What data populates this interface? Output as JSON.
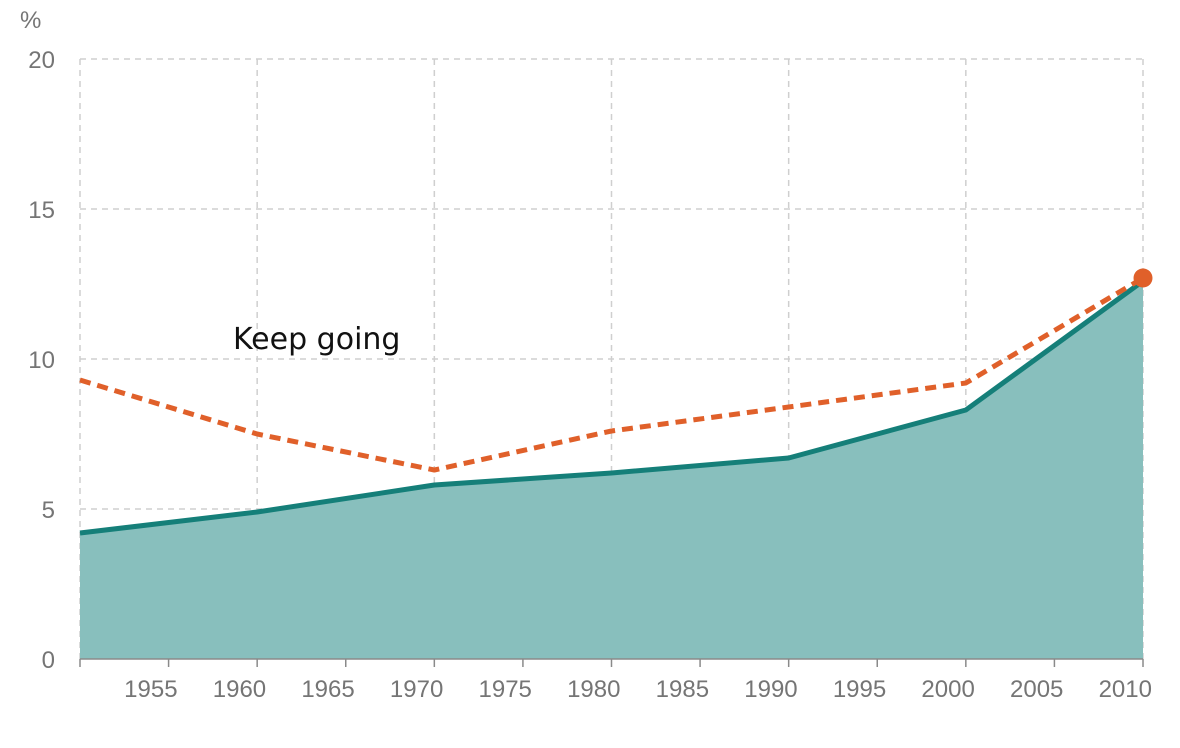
{
  "chart_data": {
    "type": "area",
    "y_unit_label": "%",
    "annotation": "Keep going",
    "xlim": [
      1951,
      2011
    ],
    "ylim": [
      0,
      20
    ],
    "x_ticks": [
      1955,
      1960,
      1965,
      1970,
      1975,
      1980,
      1985,
      1990,
      1995,
      2000,
      2005,
      2010
    ],
    "y_ticks": [
      0,
      5,
      10,
      15,
      20
    ],
    "grid": true,
    "series": [
      {
        "style": "filled-area-solid-line",
        "color": "#157f79",
        "fill_color": "#88bfbd",
        "points": [
          [
            1951,
            4.2
          ],
          [
            1961,
            4.9
          ],
          [
            1971,
            5.8
          ],
          [
            1981,
            6.2
          ],
          [
            1991,
            6.7
          ],
          [
            2001,
            8.3
          ],
          [
            2011,
            12.6
          ]
        ]
      },
      {
        "style": "dashed-line",
        "color": "#e0602a",
        "points": [
          [
            1951,
            9.3
          ],
          [
            1961,
            7.5
          ],
          [
            1971,
            6.3
          ],
          [
            1981,
            7.6
          ],
          [
            1991,
            8.4
          ],
          [
            2001,
            9.2
          ],
          [
            2011,
            12.7
          ]
        ],
        "end_marker": true
      }
    ]
  }
}
